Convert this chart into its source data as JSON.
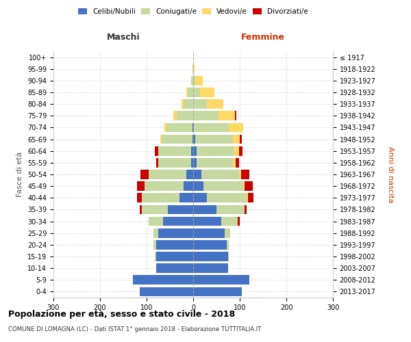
{
  "age_groups": [
    "0-4",
    "5-9",
    "10-14",
    "15-19",
    "20-24",
    "25-29",
    "30-34",
    "35-39",
    "40-44",
    "45-49",
    "50-54",
    "55-59",
    "60-64",
    "65-69",
    "70-74",
    "75-79",
    "80-84",
    "85-89",
    "90-94",
    "95-99",
    "100+"
  ],
  "birth_years": [
    "2013-2017",
    "2008-2012",
    "2003-2007",
    "1998-2002",
    "1993-1997",
    "1988-1992",
    "1983-1987",
    "1978-1982",
    "1973-1977",
    "1968-1972",
    "1963-1967",
    "1958-1962",
    "1953-1957",
    "1948-1952",
    "1943-1947",
    "1938-1942",
    "1933-1937",
    "1928-1932",
    "1923-1927",
    "1918-1922",
    "≤ 1917"
  ],
  "male": {
    "celibi": [
      115,
      130,
      80,
      80,
      80,
      75,
      65,
      55,
      30,
      20,
      15,
      5,
      5,
      2,
      2,
      0,
      0,
      0,
      0,
      0,
      0
    ],
    "coniugati": [
      0,
      0,
      0,
      2,
      5,
      10,
      30,
      55,
      80,
      85,
      80,
      70,
      70,
      65,
      55,
      35,
      20,
      12,
      5,
      1,
      0
    ],
    "vedovi": [
      0,
      0,
      0,
      0,
      0,
      0,
      0,
      0,
      0,
      0,
      0,
      0,
      0,
      3,
      5,
      8,
      5,
      2,
      0,
      0,
      0
    ],
    "divorziati": [
      0,
      0,
      0,
      0,
      0,
      0,
      0,
      5,
      10,
      15,
      18,
      5,
      8,
      0,
      0,
      0,
      0,
      0,
      0,
      0,
      0
    ]
  },
  "female": {
    "nubili": [
      105,
      120,
      75,
      75,
      72,
      68,
      60,
      50,
      30,
      22,
      18,
      8,
      8,
      5,
      2,
      0,
      0,
      0,
      0,
      0,
      0
    ],
    "coniugate": [
      0,
      0,
      0,
      2,
      5,
      12,
      35,
      60,
      85,
      85,
      80,
      78,
      80,
      80,
      75,
      55,
      30,
      15,
      5,
      0,
      0
    ],
    "vedove": [
      0,
      0,
      0,
      0,
      0,
      0,
      0,
      0,
      2,
      3,
      5,
      5,
      10,
      15,
      30,
      35,
      35,
      30,
      15,
      3,
      1
    ],
    "divorziate": [
      0,
      0,
      0,
      0,
      0,
      0,
      5,
      5,
      12,
      18,
      18,
      8,
      8,
      5,
      0,
      2,
      0,
      0,
      0,
      0,
      0
    ]
  },
  "colors": {
    "celibi_nubili": "#4472C4",
    "coniugati": "#c5d9a0",
    "vedovi": "#FFD966",
    "divorziati": "#CC0000"
  },
  "title": "Popolazione per età, sesso e stato civile - 2018",
  "subtitle": "COMUNE DI LOMAGNA (LC) - Dati ISTAT 1° gennaio 2018 - Elaborazione TUTTITALIA.IT",
  "xlabel_left": "Maschi",
  "xlabel_right": "Femmine",
  "ylabel_left": "Fasce di età",
  "ylabel_right": "Anni di nascita",
  "xlim": 300,
  "bg_color": "#ffffff",
  "grid_color": "#cccccc"
}
